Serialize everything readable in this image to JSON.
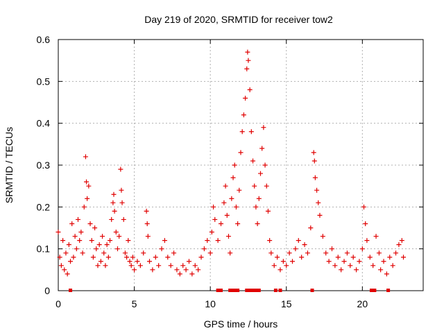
{
  "chart_data": {
    "type": "scatter",
    "title": "Day 219 of 2020, SRMTID for receiver tow2",
    "xlabel": "GPS time / hours",
    "ylabel": "SRMTID / TECUs",
    "xlim": [
      0,
      24
    ],
    "ylim": [
      0,
      0.6
    ],
    "xticks": [
      0,
      5,
      10,
      15,
      20
    ],
    "yticks": [
      0,
      0.1,
      0.2,
      0.3,
      0.4,
      0.5,
      0.6
    ],
    "grid": true,
    "marker": "+",
    "color": "#e00000",
    "series": [
      {
        "name": "SRMTID",
        "points": [
          [
            0.0,
            0.14
          ],
          [
            0.1,
            0.08
          ],
          [
            0.2,
            0.06
          ],
          [
            0.3,
            0.12
          ],
          [
            0.4,
            0.05
          ],
          [
            0.5,
            0.09
          ],
          [
            0.6,
            0.04
          ],
          [
            0.7,
            0.11
          ],
          [
            0.8,
            0.07
          ],
          [
            0.9,
            0.16
          ],
          [
            1.0,
            0.08
          ],
          [
            1.1,
            0.13
          ],
          [
            1.2,
            0.1
          ],
          [
            1.3,
            0.17
          ],
          [
            1.4,
            0.12
          ],
          [
            1.5,
            0.14
          ],
          [
            1.6,
            0.09
          ],
          [
            1.7,
            0.2
          ],
          [
            1.8,
            0.32
          ],
          [
            1.85,
            0.26
          ],
          [
            1.9,
            0.22
          ],
          [
            2.0,
            0.25
          ],
          [
            2.1,
            0.16
          ],
          [
            2.2,
            0.12
          ],
          [
            2.3,
            0.08
          ],
          [
            2.4,
            0.15
          ],
          [
            2.5,
            0.1
          ],
          [
            2.6,
            0.06
          ],
          [
            2.7,
            0.11
          ],
          [
            2.8,
            0.07
          ],
          [
            2.9,
            0.13
          ],
          [
            3.0,
            0.09
          ],
          [
            3.1,
            0.06
          ],
          [
            3.2,
            0.11
          ],
          [
            3.3,
            0.08
          ],
          [
            3.4,
            0.12
          ],
          [
            3.5,
            0.17
          ],
          [
            3.6,
            0.21
          ],
          [
            3.65,
            0.23
          ],
          [
            3.7,
            0.19
          ],
          [
            3.8,
            0.14
          ],
          [
            3.9,
            0.1
          ],
          [
            4.0,
            0.13
          ],
          [
            4.1,
            0.29
          ],
          [
            4.15,
            0.24
          ],
          [
            4.2,
            0.21
          ],
          [
            4.3,
            0.17
          ],
          [
            4.4,
            0.09
          ],
          [
            4.5,
            0.08
          ],
          [
            4.6,
            0.12
          ],
          [
            4.7,
            0.07
          ],
          [
            4.8,
            0.06
          ],
          [
            4.9,
            0.08
          ],
          [
            5.0,
            0.05
          ],
          [
            5.2,
            0.07
          ],
          [
            5.4,
            0.06
          ],
          [
            5.6,
            0.09
          ],
          [
            5.8,
            0.19
          ],
          [
            5.85,
            0.16
          ],
          [
            5.9,
            0.13
          ],
          [
            6.0,
            0.07
          ],
          [
            6.2,
            0.05
          ],
          [
            6.4,
            0.08
          ],
          [
            6.6,
            0.06
          ],
          [
            6.8,
            0.1
          ],
          [
            7.0,
            0.12
          ],
          [
            7.2,
            0.08
          ],
          [
            7.4,
            0.06
          ],
          [
            7.6,
            0.09
          ],
          [
            7.8,
            0.05
          ],
          [
            8.0,
            0.04
          ],
          [
            8.2,
            0.06
          ],
          [
            8.4,
            0.05
          ],
          [
            8.6,
            0.07
          ],
          [
            8.8,
            0.04
          ],
          [
            9.0,
            0.06
          ],
          [
            9.2,
            0.05
          ],
          [
            9.4,
            0.08
          ],
          [
            9.6,
            0.1
          ],
          [
            9.8,
            0.12
          ],
          [
            10.0,
            0.09
          ],
          [
            10.1,
            0.14
          ],
          [
            10.2,
            0.2
          ],
          [
            10.3,
            0.17
          ],
          [
            10.5,
            0.12
          ],
          [
            10.7,
            0.16
          ],
          [
            10.9,
            0.21
          ],
          [
            11.0,
            0.25
          ],
          [
            11.1,
            0.18
          ],
          [
            11.2,
            0.13
          ],
          [
            11.3,
            0.09
          ],
          [
            11.4,
            0.22
          ],
          [
            11.5,
            0.27
          ],
          [
            11.6,
            0.3
          ],
          [
            11.7,
            0.2
          ],
          [
            11.8,
            0.16
          ],
          [
            11.9,
            0.24
          ],
          [
            12.0,
            0.33
          ],
          [
            12.1,
            0.38
          ],
          [
            12.2,
            0.42
          ],
          [
            12.3,
            0.46
          ],
          [
            12.4,
            0.53
          ],
          [
            12.45,
            0.57
          ],
          [
            12.5,
            0.55
          ],
          [
            12.6,
            0.48
          ],
          [
            12.7,
            0.38
          ],
          [
            12.8,
            0.31
          ],
          [
            12.9,
            0.25
          ],
          [
            13.0,
            0.2
          ],
          [
            13.1,
            0.16
          ],
          [
            13.2,
            0.22
          ],
          [
            13.3,
            0.28
          ],
          [
            13.4,
            0.34
          ],
          [
            13.5,
            0.39
          ],
          [
            13.6,
            0.3
          ],
          [
            13.7,
            0.25
          ],
          [
            13.8,
            0.19
          ],
          [
            13.9,
            0.12
          ],
          [
            14.0,
            0.09
          ],
          [
            14.2,
            0.06
          ],
          [
            14.4,
            0.08
          ],
          [
            14.6,
            0.05
          ],
          [
            14.8,
            0.07
          ],
          [
            15.0,
            0.06
          ],
          [
            15.2,
            0.09
          ],
          [
            15.4,
            0.07
          ],
          [
            15.6,
            0.1
          ],
          [
            15.8,
            0.12
          ],
          [
            16.0,
            0.08
          ],
          [
            16.2,
            0.11
          ],
          [
            16.4,
            0.09
          ],
          [
            16.6,
            0.15
          ],
          [
            16.8,
            0.33
          ],
          [
            16.85,
            0.31
          ],
          [
            16.9,
            0.27
          ],
          [
            17.0,
            0.24
          ],
          [
            17.1,
            0.21
          ],
          [
            17.2,
            0.18
          ],
          [
            17.4,
            0.13
          ],
          [
            17.6,
            0.09
          ],
          [
            17.8,
            0.07
          ],
          [
            18.0,
            0.1
          ],
          [
            18.2,
            0.06
          ],
          [
            18.4,
            0.08
          ],
          [
            18.6,
            0.05
          ],
          [
            18.8,
            0.07
          ],
          [
            19.0,
            0.09
          ],
          [
            19.2,
            0.06
          ],
          [
            19.4,
            0.08
          ],
          [
            19.6,
            0.05
          ],
          [
            19.8,
            0.07
          ],
          [
            20.0,
            0.1
          ],
          [
            20.1,
            0.2
          ],
          [
            20.2,
            0.16
          ],
          [
            20.3,
            0.12
          ],
          [
            20.5,
            0.08
          ],
          [
            20.7,
            0.06
          ],
          [
            20.9,
            0.13
          ],
          [
            21.1,
            0.09
          ],
          [
            21.2,
            0.05
          ],
          [
            21.4,
            0.07
          ],
          [
            21.6,
            0.04
          ],
          [
            21.8,
            0.08
          ],
          [
            22.0,
            0.06
          ],
          [
            22.2,
            0.09
          ],
          [
            22.4,
            0.11
          ],
          [
            22.6,
            0.12
          ],
          [
            22.7,
            0.08
          ]
        ]
      }
    ],
    "markers_at_zero": [
      0.8,
      10.5,
      10.7,
      11.3,
      11.4,
      11.6,
      11.8,
      12.4,
      12.6,
      12.8,
      13.0,
      13.2,
      14.3,
      14.6,
      16.7,
      20.6,
      20.8,
      21.7
    ]
  }
}
